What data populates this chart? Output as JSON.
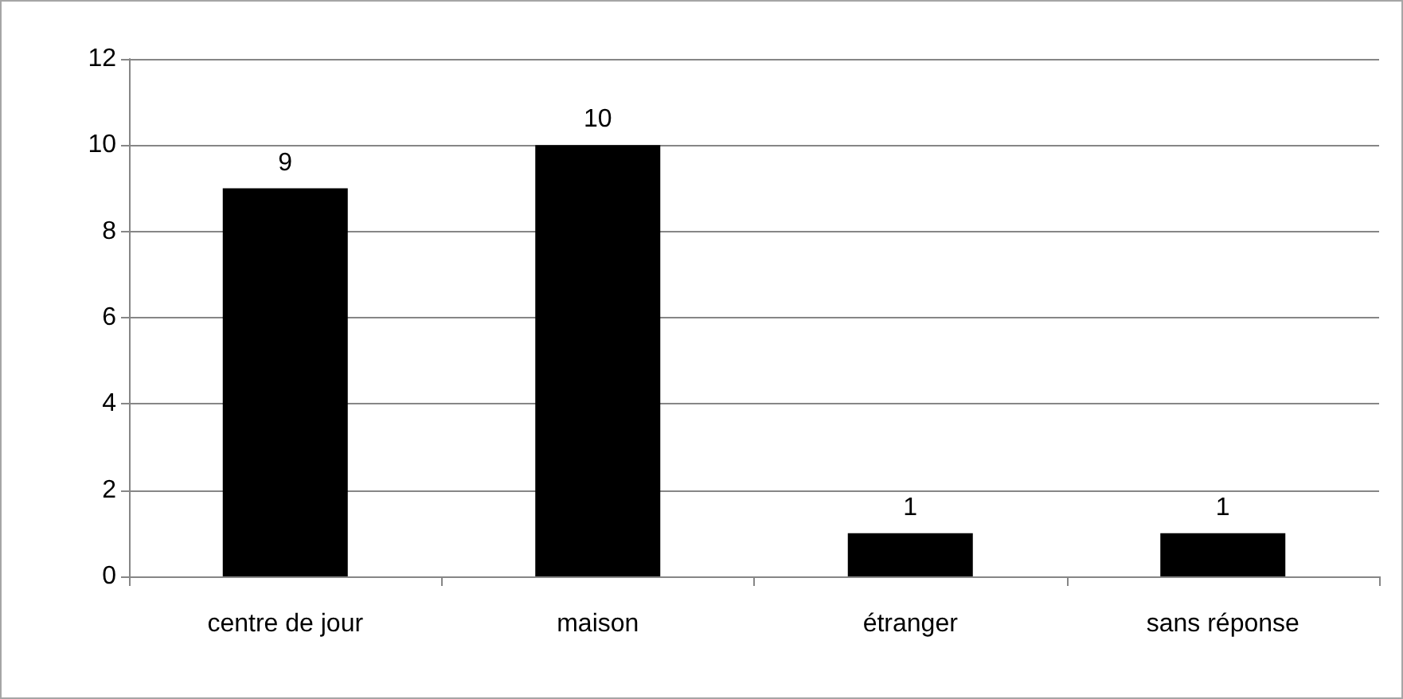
{
  "chart_data": {
    "type": "bar",
    "categories": [
      "centre de jour",
      "maison",
      "étranger",
      "sans réponse"
    ],
    "values": [
      9,
      10,
      1,
      1
    ],
    "color": "#000000",
    "ylim": [
      0,
      12
    ],
    "yticks": [
      0,
      2,
      4,
      6,
      8,
      10,
      12
    ],
    "grid": "y",
    "data_labels": true
  }
}
